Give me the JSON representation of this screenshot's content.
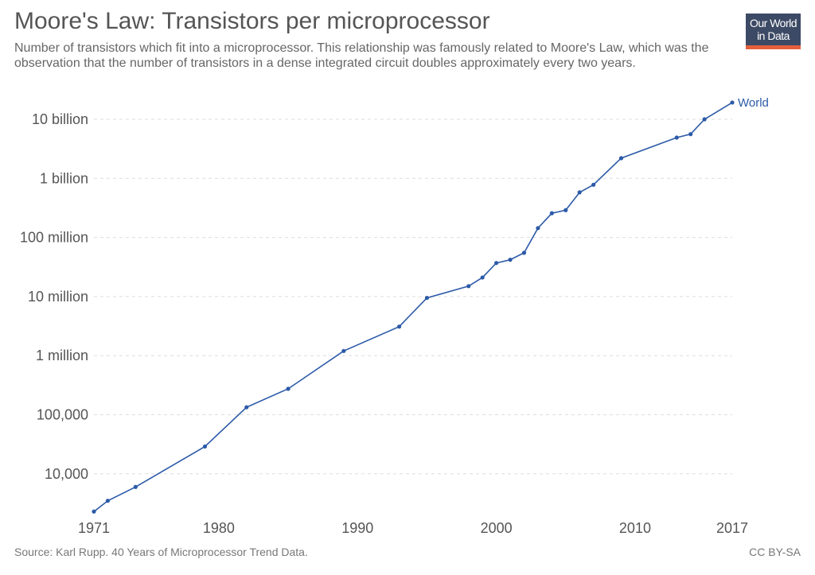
{
  "title": "Moore's Law: Transistors per microprocessor",
  "subtitle": "Number of transistors which fit into a microprocessor. This relationship was famously related to Moore's Law, which was the observation that the number of transistors in a dense integrated circuit doubles approximately every two years.",
  "logo": {
    "line1": "Our World",
    "line2": "in Data",
    "colors": {
      "background": "#3d4a65",
      "accent": "#e4603d"
    }
  },
  "source": "Source: Karl Rupp. 40 Years of Microprocessor Trend Data.",
  "license": "CC BY-SA",
  "chart_data": {
    "type": "line",
    "yscale": "log",
    "grid": "horizontal dashed",
    "x_ticks": [
      1971,
      1980,
      1990,
      2000,
      2010,
      2017
    ],
    "y_ticks": [
      {
        "value": 10000,
        "label": "10,000"
      },
      {
        "value": 100000,
        "label": "100,000"
      },
      {
        "value": 1000000,
        "label": "1 million"
      },
      {
        "value": 10000000,
        "label": "10 million"
      },
      {
        "value": 100000000,
        "label": "100 million"
      },
      {
        "value": 1000000000,
        "label": "1 billion"
      },
      {
        "value": 10000000000,
        "label": "10 billion"
      }
    ],
    "xlim": [
      1971,
      2017
    ],
    "series": [
      {
        "name": "World",
        "color": "#2c5aa8",
        "x": [
          1971,
          1972,
          1974,
          1979,
          1982,
          1985,
          1989,
          1993,
          1995,
          1998,
          1999,
          2000,
          2001,
          2002,
          2003,
          2004,
          2005,
          2006,
          2007,
          2009,
          2013,
          2014,
          2015,
          2017
        ],
        "values": [
          2300,
          3500,
          6000,
          29000,
          134000,
          275000,
          1200000,
          3100000,
          9500000,
          15000000,
          21000000,
          37000000,
          42000000,
          55000000,
          144000000,
          257000000,
          290000000,
          580000000,
          780000000,
          2200000000,
          4900000000,
          5600000000,
          10000000000,
          19200000000
        ]
      }
    ]
  }
}
